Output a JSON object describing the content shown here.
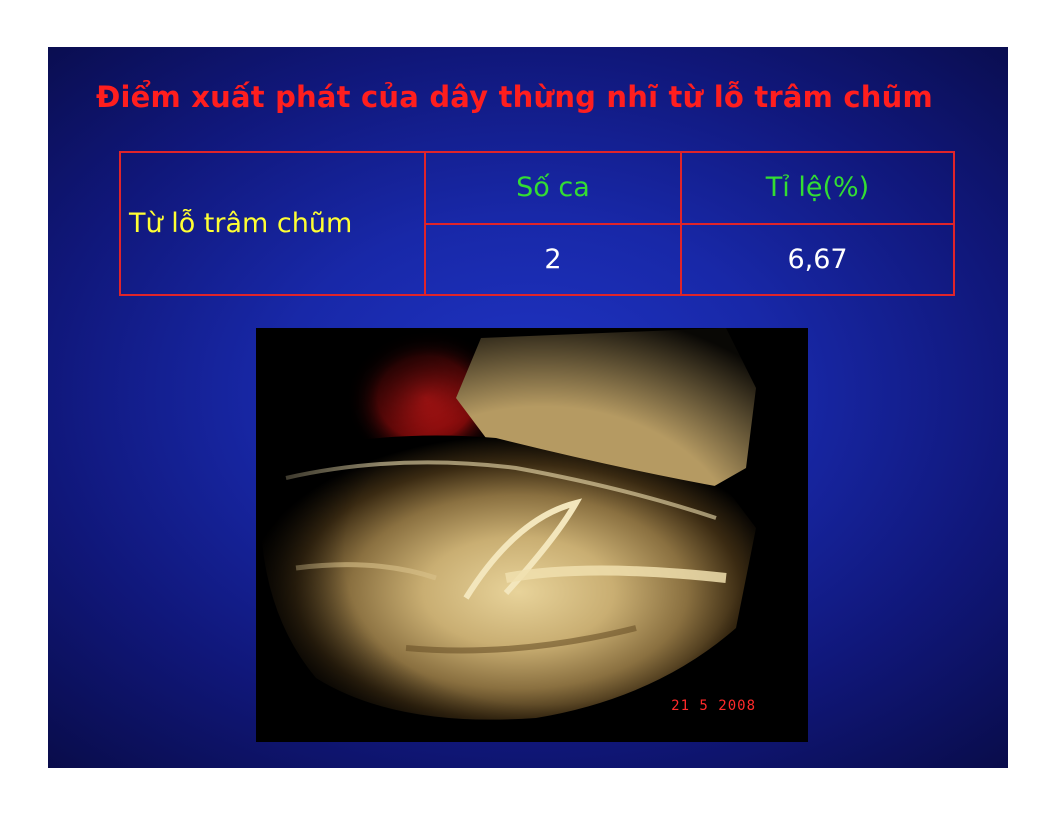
{
  "slide": {
    "title": "Điểm xuất phát của dây thừng nhĩ từ lỗ trâm chũm",
    "colors": {
      "background": "#1828a8",
      "title": "#ff1e1e",
      "table_border": "#e0242a",
      "row_label": "#ffff33",
      "column_header": "#33dd33",
      "cell_value": "#ffffff"
    }
  },
  "table": {
    "row_label": "Từ lỗ trâm chũm",
    "headers": [
      "Số ca",
      "Tỉ lệ(%)"
    ],
    "values": [
      "2",
      "6,67"
    ]
  },
  "photo": {
    "date_stamp": "21  5 2008"
  }
}
